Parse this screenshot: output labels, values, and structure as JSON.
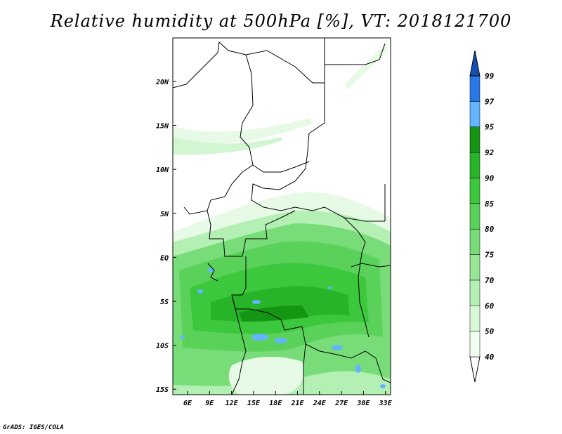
{
  "title": "Relative humidity at 500hPa [%], VT: 2018121700",
  "credit": "GrADS: IGES/COLA",
  "map": {
    "lon_labels": [
      "6E",
      "9E",
      "12E",
      "15E",
      "18E",
      "21E",
      "24E",
      "27E",
      "30E",
      "33E"
    ],
    "lat_labels": [
      "20N",
      "15N",
      "10N",
      "5N",
      "EQ",
      "5S",
      "10S",
      "15S"
    ]
  },
  "colorbar": {
    "levels": [
      "40",
      "50",
      "60",
      "70",
      "75",
      "80",
      "85",
      "90",
      "92",
      "95",
      "97",
      "99"
    ],
    "colors": [
      "#f0fff0",
      "#d7f9d7",
      "#b4f0b4",
      "#96e696",
      "#78dc78",
      "#5ad25a",
      "#3cc83c",
      "#28b428",
      "#149614",
      "#64b4ff",
      "#2878e6",
      "#1450b4"
    ]
  }
}
